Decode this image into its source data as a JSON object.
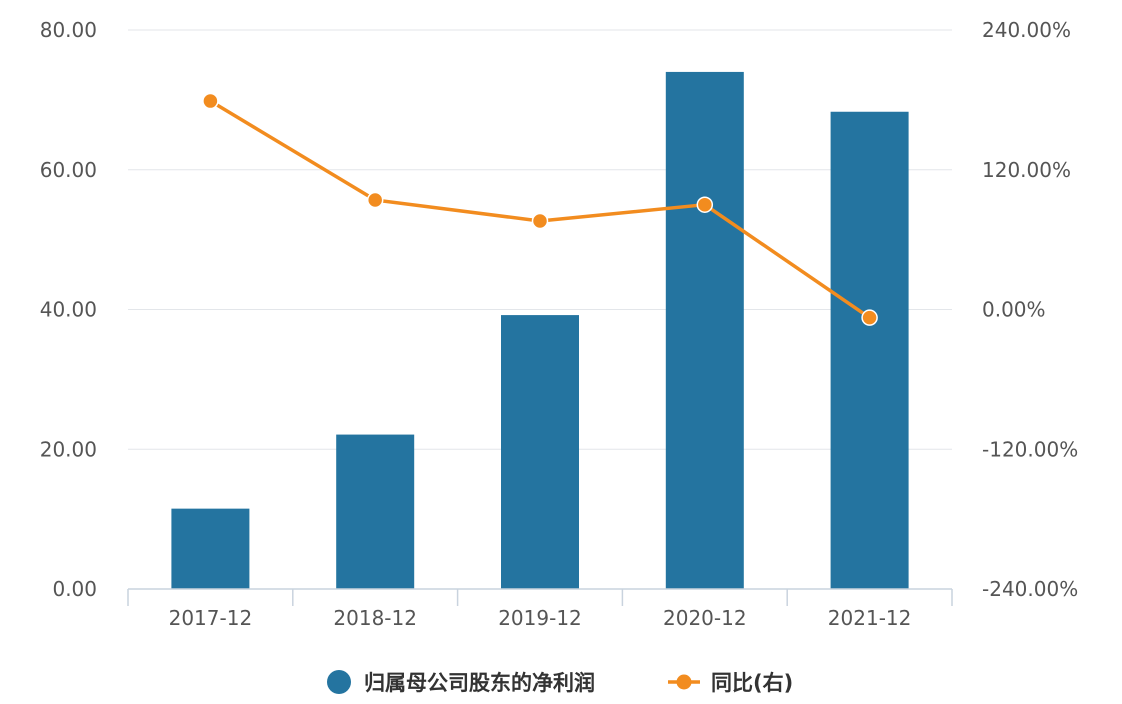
{
  "chart_data": {
    "type": "bar",
    "categories": [
      "2017-12",
      "2018-12",
      "2019-12",
      "2020-12",
      "2021-12"
    ],
    "series": [
      {
        "name": "归属母公司股东的净利润",
        "type": "bar",
        "axis": "left",
        "color": "#2474a0",
        "values": [
          11.5,
          22.1,
          39.2,
          74.0,
          68.3
        ]
      },
      {
        "name": "同比(右)",
        "type": "line",
        "axis": "right",
        "color": "#f28c1f",
        "values": [
          179.0,
          94.0,
          76.0,
          90.0,
          -7.0
        ]
      }
    ],
    "y_left": {
      "ylim": [
        0,
        80
      ],
      "ticks": [
        0,
        20,
        40,
        60,
        80
      ],
      "tick_labels": [
        "0.00",
        "20.00",
        "40.00",
        "60.00",
        "80.00"
      ]
    },
    "y_right": {
      "ylim": [
        -240,
        240
      ],
      "ticks": [
        -240,
        -120,
        0,
        120,
        240
      ],
      "tick_labels": [
        "-240.00%",
        "-120.00%",
        "0.00%",
        "120.00%",
        "240.00%"
      ]
    },
    "grid": true,
    "legend_position": "bottom-center",
    "title": "",
    "xlabel": "",
    "ylabel": ""
  }
}
